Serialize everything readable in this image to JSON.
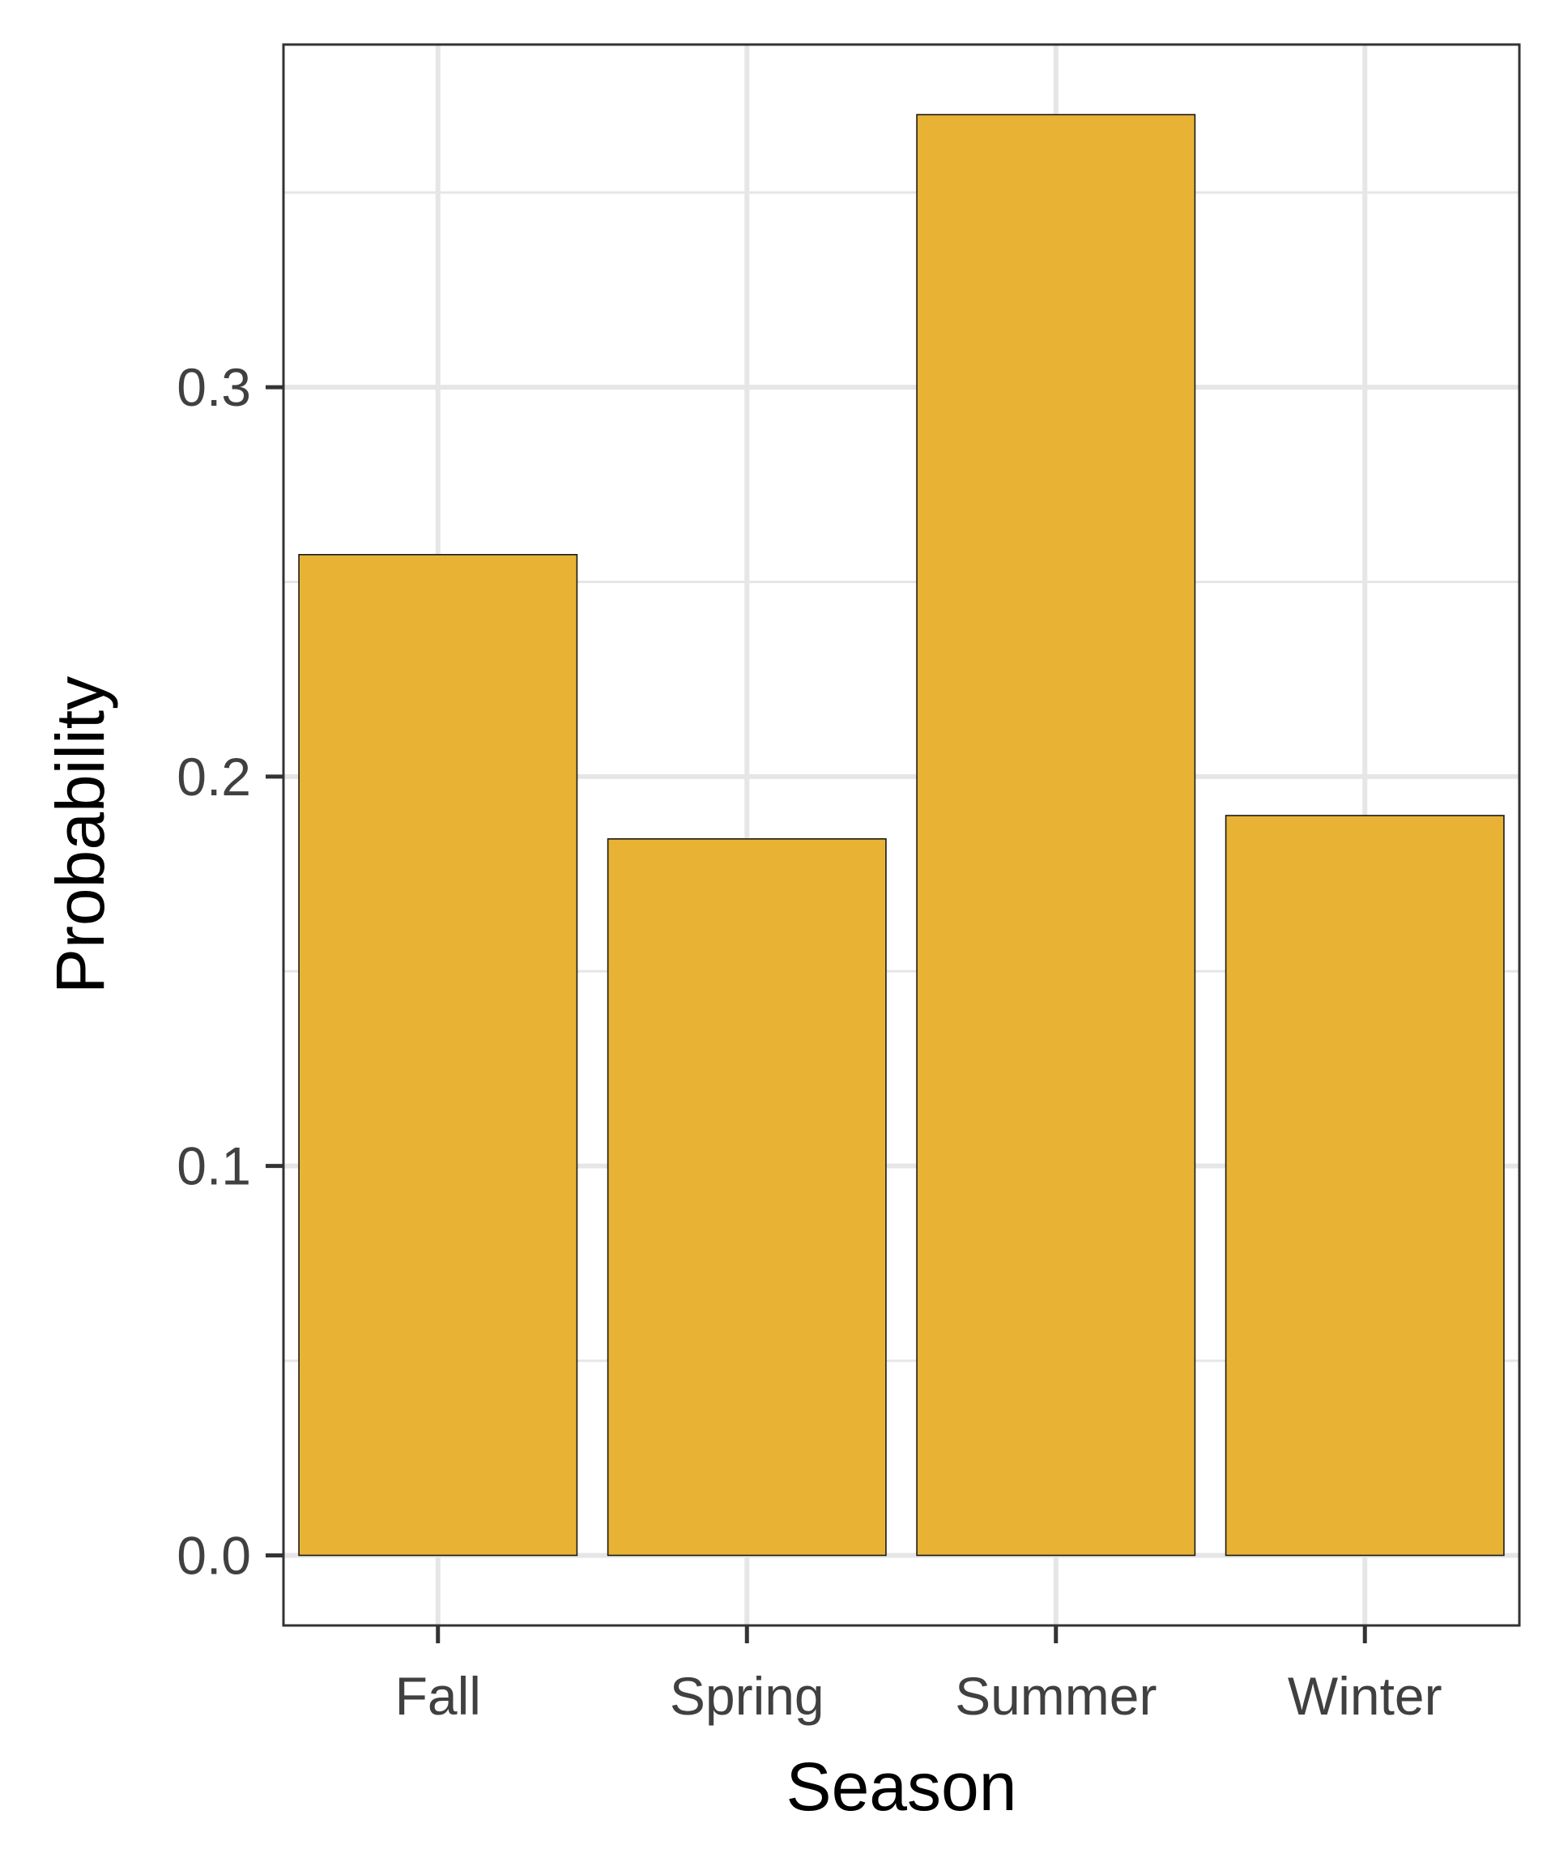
{
  "chart_data": {
    "type": "bar",
    "categories": [
      "Fall",
      "Spring",
      "Summer",
      "Winter"
    ],
    "values": [
      0.257,
      0.184,
      0.37,
      0.19
    ],
    "title": "",
    "xlabel": "Season",
    "ylabel": "Probability",
    "ylim": [
      -0.018,
      0.388
    ],
    "y_ticks": [
      0.0,
      0.1,
      0.2,
      0.3
    ],
    "y_tick_labels": [
      "0.0",
      "0.1",
      "0.2",
      "0.3"
    ],
    "grid": true,
    "legend": "none",
    "colors": {
      "bar_fill": "#E8B335",
      "bar_stroke": "#1a1a1a",
      "grid": "#E6E6E6",
      "panel_border": "#333333",
      "tick_label": "#404040"
    }
  }
}
